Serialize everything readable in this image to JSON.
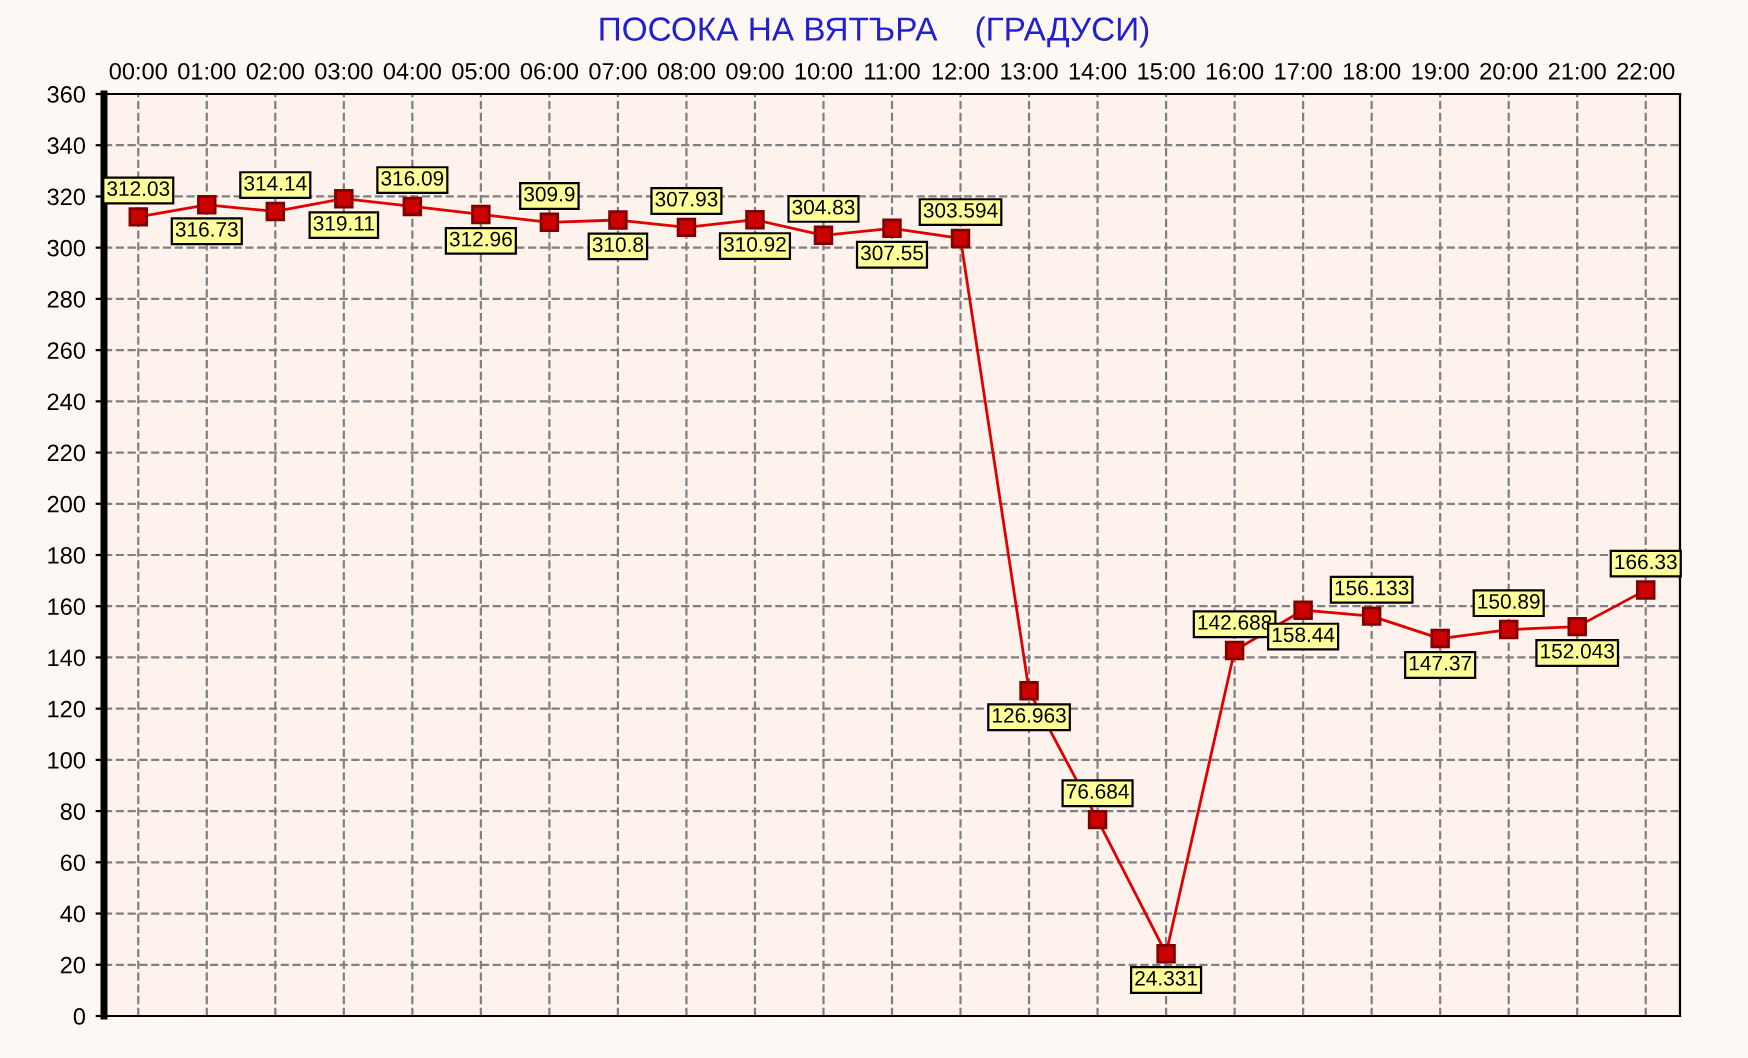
{
  "chart_data": {
    "type": "line",
    "title": "ПОСОКА НА ВЯТЪРА    (ГРАДУСИ)",
    "categories": [
      "00:00",
      "01:00",
      "02:00",
      "03:00",
      "04:00",
      "05:00",
      "06:00",
      "07:00",
      "08:00",
      "09:00",
      "10:00",
      "11:00",
      "12:00",
      "13:00",
      "14:00",
      "15:00",
      "16:00",
      "17:00",
      "18:00",
      "19:00",
      "20:00",
      "21:00",
      "22:00"
    ],
    "series": [
      {
        "color": "#e00000",
        "values": [
          312.03,
          316.73,
          314.14,
          319.11,
          316.09,
          312.96,
          309.9,
          310.8,
          307.93,
          310.92,
          304.83,
          307.55,
          303.594,
          126.963,
          76.684,
          24.331,
          142.688,
          158.44,
          156.133,
          147.37,
          150.89,
          152.043,
          166.33
        ]
      }
    ],
    "ylim": [
      0,
      360
    ],
    "yticks": [
      0,
      20,
      40,
      60,
      80,
      100,
      120,
      140,
      160,
      180,
      200,
      220,
      240,
      260,
      280,
      300,
      320,
      340,
      360
    ],
    "grid": true,
    "marker": "square",
    "line_style": "solid",
    "data_labels": true,
    "legend": false
  }
}
